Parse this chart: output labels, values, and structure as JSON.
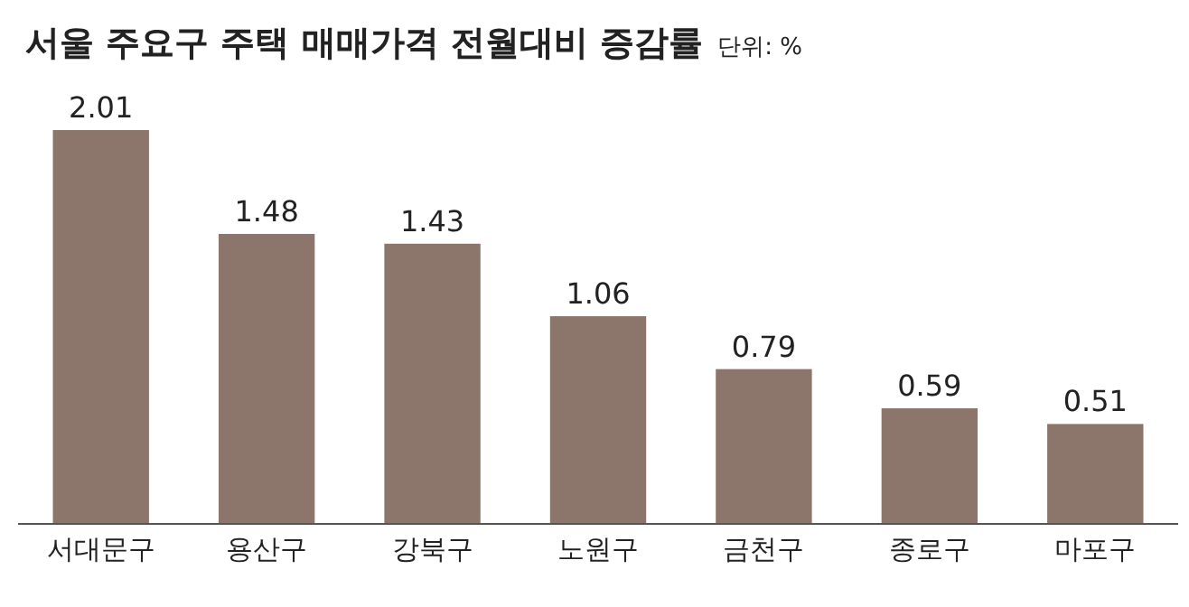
{
  "chart_data": {
    "type": "bar",
    "title": "서울 주요구 주택 매매가격 전월대비 증감률",
    "subtitle": "단위: %",
    "categories": [
      "서대문구",
      "용산구",
      "강북구",
      "노원구",
      "금천구",
      "종로구",
      "마포구"
    ],
    "values": [
      2.01,
      1.48,
      1.43,
      1.06,
      0.79,
      0.59,
      0.51
    ],
    "color": "#8c766b",
    "data_labels": true
  }
}
